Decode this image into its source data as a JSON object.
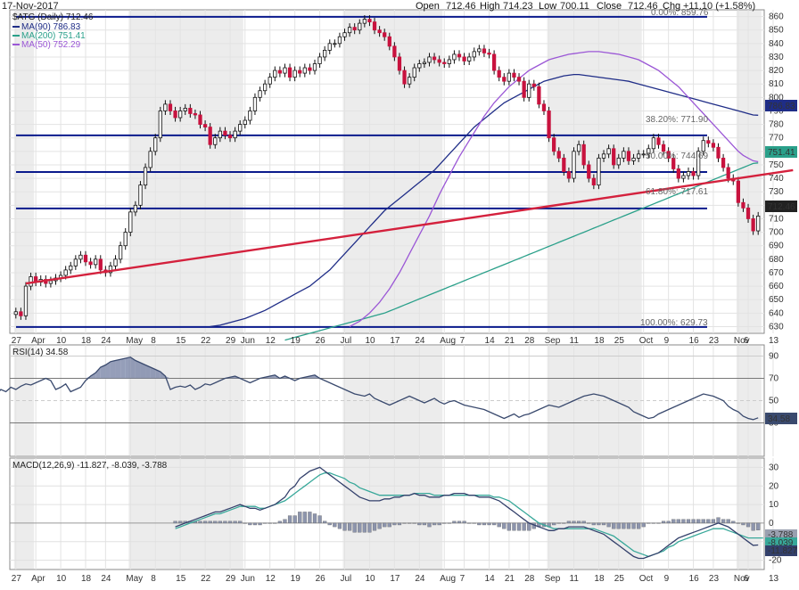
{
  "header": {
    "date": "17-Nov-2017",
    "open_label": "Open",
    "open": "712.46",
    "high_label": "High",
    "high": "714.23",
    "low_label": "Low",
    "low": "700.11",
    "close_label": "Close",
    "close": "712.46",
    "chg_label": "Chg",
    "chg": "+11.10 (+1.58%)"
  },
  "legend": {
    "symbol": "$ATG (Daily) 712.46",
    "ma90": "MA(90) 786.83",
    "ma200": "MA(200) 751.41",
    "ma50": "MA(50) 752.29"
  },
  "fib_labels": {
    "f0": "0.00%: 859.76",
    "f382": "38.20%: 771.90",
    "f50": "50.00%: 744.69",
    "f618": "61.80%: 717.61",
    "f100": "100.00%: 629.73"
  },
  "price_badges": {
    "ma90": "786.83",
    "ma200": "751.41",
    "last": "712.46"
  },
  "rsi": {
    "label": "RSI(14) 34.58",
    "badge": "34.58"
  },
  "macd": {
    "label": "MACD(12,26,9) -11.827, -8.039, -3.788",
    "b_hist": "-3.788",
    "b_signal": "-8.039",
    "b_macd": "-11.827"
  },
  "colors": {
    "ma90": "#1f2d87",
    "ma200": "#2aa08a",
    "ma50": "#9b57d6",
    "trend": "#d4213d",
    "fib": "#0a1a8c",
    "up": "#ffffff",
    "down": "#c8123e",
    "rsi": "#3a4a6e",
    "macd": "#33406b",
    "signal": "#38a89a"
  },
  "chart_data": {
    "type": "candlestick",
    "title": "$ATG (Daily)",
    "ylim": [
      625,
      865
    ],
    "y_ticks": [
      630,
      640,
      650,
      660,
      670,
      680,
      690,
      700,
      710,
      720,
      730,
      740,
      750,
      760,
      770,
      780,
      790,
      800,
      810,
      820,
      830,
      840,
      850,
      860
    ],
    "x_ticks": [
      {
        "i": 0,
        "label": "27"
      },
      {
        "i": 4,
        "label": "Apr"
      },
      {
        "i": 9,
        "label": "10"
      },
      {
        "i": 14,
        "label": "18"
      },
      {
        "i": 18,
        "label": "24"
      },
      {
        "i": 23,
        "label": "May"
      },
      {
        "i": 28,
        "label": "8"
      },
      {
        "i": 33,
        "label": "15"
      },
      {
        "i": 38,
        "label": "22"
      },
      {
        "i": 43,
        "label": "29"
      },
      {
        "i": 46,
        "label": "Jun"
      },
      {
        "i": 51,
        "label": "12"
      },
      {
        "i": 56,
        "label": "19"
      },
      {
        "i": 61,
        "label": "26"
      },
      {
        "i": 66,
        "label": "Jul"
      },
      {
        "i": 71,
        "label": "10"
      },
      {
        "i": 76,
        "label": "17"
      },
      {
        "i": 81,
        "label": "24"
      },
      {
        "i": 86,
        "label": "Aug"
      },
      {
        "i": 90,
        "label": "7"
      },
      {
        "i": 95,
        "label": "14"
      },
      {
        "i": 99,
        "label": "21"
      },
      {
        "i": 103,
        "label": "28"
      },
      {
        "i": 107,
        "label": "Sep"
      },
      {
        "i": 112,
        "label": "11"
      },
      {
        "i": 117,
        "label": "18"
      },
      {
        "i": 121,
        "label": "25"
      },
      {
        "i": 126,
        "label": "Oct"
      },
      {
        "i": 131,
        "label": "9"
      },
      {
        "i": 136,
        "label": "16"
      },
      {
        "i": 140,
        "label": "23"
      },
      {
        "i": 145,
        "label": "Nov"
      },
      {
        "i": 147,
        "label": "6"
      },
      {
        "i": 152,
        "label": "13"
      }
    ],
    "fib_levels": [
      859.76,
      771.9,
      744.69,
      717.61,
      629.73
    ],
    "trendline": [
      {
        "i": 2,
        "v": 662
      },
      {
        "i": 156,
        "v": 746
      }
    ],
    "closes": [
      641,
      638,
      660,
      667,
      663,
      665,
      662,
      664,
      666,
      668,
      672,
      675,
      680,
      683,
      678,
      676,
      680,
      672,
      670,
      675,
      680,
      690,
      700,
      715,
      720,
      735,
      748,
      760,
      770,
      790,
      795,
      790,
      785,
      790,
      792,
      788,
      787,
      780,
      778,
      765,
      770,
      775,
      772,
      770,
      775,
      780,
      783,
      790,
      800,
      805,
      810,
      815,
      820,
      818,
      822,
      815,
      820,
      818,
      822,
      820,
      825,
      830,
      835,
      840,
      840,
      845,
      848,
      852,
      850,
      855,
      858,
      856,
      850,
      848,
      845,
      838,
      830,
      820,
      810,
      815,
      822,
      825,
      826,
      830,
      828,
      826,
      825,
      828,
      832,
      830,
      827,
      830,
      834,
      836,
      833,
      832,
      820,
      815,
      812,
      818,
      815,
      812,
      800,
      810,
      808,
      795,
      790,
      770,
      760,
      755,
      745,
      740,
      760,
      765,
      750,
      740,
      735,
      755,
      758,
      762,
      750,
      755,
      760,
      753,
      755,
      758,
      758,
      762,
      770,
      765,
      760,
      755,
      747,
      740,
      742,
      745,
      742,
      760,
      768,
      766,
      763,
      755,
      748,
      740,
      738,
      722,
      718,
      710,
      701,
      712
    ],
    "ma90": [
      630,
      630.5,
      631,
      632,
      633,
      634,
      635,
      636,
      637.5,
      639,
      640.5,
      642,
      644,
      646,
      648,
      650,
      652,
      654,
      656,
      658,
      660,
      663,
      666,
      669,
      672,
      676,
      680,
      684,
      688,
      692,
      696,
      700,
      704,
      708,
      712,
      716,
      719,
      722,
      725,
      728,
      731,
      734,
      737,
      740,
      743,
      746,
      750,
      754,
      758,
      762,
      766,
      770,
      774,
      778,
      781,
      784,
      787,
      790,
      793,
      796,
      798,
      800,
      802,
      804,
      806,
      808,
      810,
      812,
      813,
      814,
      815,
      816,
      816.5,
      817,
      817,
      816.5,
      816,
      815.5,
      815,
      814.5,
      814,
      813.5,
      813,
      812.5,
      812,
      811,
      810,
      809,
      808,
      807,
      806,
      805,
      804,
      803,
      802,
      801,
      800,
      799,
      798,
      797,
      796,
      795,
      794,
      793,
      792,
      791,
      790,
      789,
      788,
      787,
      786.8
    ],
    "ma200": [
      620,
      621,
      622,
      623,
      624,
      625,
      626,
      627,
      628,
      629,
      630,
      631,
      632,
      633,
      634,
      635,
      636,
      637,
      638,
      639,
      640,
      641.5,
      643,
      644.5,
      646,
      647.5,
      649,
      650.5,
      652,
      653.5,
      655,
      656.5,
      658,
      659.5,
      661,
      662.5,
      664,
      665.5,
      667,
      668.5,
      670,
      671.5,
      673,
      674.5,
      676,
      677.5,
      679,
      680.5,
      682,
      683.5,
      685,
      686.5,
      688,
      689.5,
      691,
      692.5,
      694,
      695.5,
      697,
      698.5,
      700,
      701.5,
      703,
      704.5,
      706,
      707.5,
      709,
      710.5,
      712,
      713.5,
      715,
      716.5,
      718,
      719.5,
      721,
      722.5,
      724,
      725.5,
      727,
      728.5,
      730,
      731.5,
      733,
      734.5,
      736,
      737.5,
      739,
      740.5,
      742,
      743.5,
      745,
      746.5,
      748,
      749.5,
      751,
      751.4
    ],
    "ma50": [
      630,
      632,
      634,
      637,
      640,
      644,
      648,
      653,
      658,
      664,
      670,
      677,
      684,
      691,
      698,
      705,
      712,
      720,
      728,
      735,
      742,
      749,
      756,
      762,
      768,
      774,
      780,
      786,
      791,
      796,
      800,
      804,
      808,
      811,
      814,
      817,
      820,
      822,
      824,
      826,
      828,
      829,
      830,
      831,
      832,
      832.5,
      833,
      833.5,
      834,
      834,
      834,
      833.5,
      833,
      832.5,
      832,
      831,
      830,
      829,
      828,
      826,
      824,
      822,
      820,
      817,
      814,
      811,
      808,
      804,
      800,
      796,
      792,
      788,
      784,
      780,
      776,
      772,
      768,
      764,
      760,
      757,
      755,
      753,
      752.3
    ],
    "rsi": {
      "ylim": [
        0,
        100
      ],
      "ticks": [
        30,
        50,
        70,
        90
      ],
      "values": [
        50,
        48,
        55,
        60,
        58,
        62,
        60,
        63,
        65,
        64,
        66,
        68,
        70,
        68,
        60,
        62,
        65,
        58,
        60,
        62,
        68,
        72,
        75,
        80,
        82,
        85,
        86,
        87,
        88,
        89,
        86,
        84,
        82,
        80,
        78,
        76,
        72,
        60,
        62,
        63,
        62,
        64,
        60,
        62,
        65,
        64,
        66,
        68,
        70,
        71,
        72,
        70,
        68,
        66,
        68,
        70,
        71,
        72,
        73,
        70,
        72,
        70,
        68,
        70,
        71,
        72,
        73,
        70,
        68,
        66,
        64,
        62,
        60,
        58,
        56,
        55,
        54,
        56,
        52,
        50,
        48,
        46,
        48,
        50,
        52,
        54,
        52,
        50,
        48,
        50,
        52,
        49,
        47,
        49,
        50,
        48,
        46,
        45,
        44,
        43,
        42,
        40,
        38,
        36,
        34,
        36,
        38,
        35,
        37,
        38,
        40,
        42,
        44,
        46,
        45,
        44,
        46,
        48,
        50,
        52,
        54,
        55,
        56,
        55,
        54,
        52,
        50,
        48,
        46,
        44,
        40,
        38,
        36,
        34,
        35,
        38,
        40,
        42,
        44,
        46,
        48,
        50,
        52,
        54,
        56,
        55,
        54,
        52,
        50,
        45,
        42,
        40,
        36,
        34,
        33,
        34.6
      ]
    },
    "macd": {
      "ylim": [
        -25,
        35
      ],
      "ticks": [
        -20,
        -10,
        0,
        10,
        20,
        30
      ],
      "macd": [
        -2,
        -1,
        0,
        1,
        2,
        3,
        4,
        5,
        6,
        6,
        7,
        8,
        9,
        10,
        9,
        8,
        8,
        7,
        8,
        9,
        10,
        12,
        14,
        18,
        20,
        24,
        26,
        28,
        29,
        30,
        28,
        26,
        24,
        22,
        20,
        18,
        16,
        14,
        13,
        12,
        12,
        12,
        13,
        13,
        14,
        14,
        15,
        15,
        16,
        15,
        15,
        14,
        14,
        14,
        15,
        15,
        16,
        16,
        16,
        15,
        15,
        14,
        14,
        14,
        13,
        12,
        10,
        8,
        6,
        4,
        2,
        0,
        -1,
        -2,
        -3,
        -4,
        -4,
        -3,
        -3,
        -2,
        -2,
        -2,
        -2,
        -3,
        -4,
        -5,
        -6,
        -8,
        -10,
        -12,
        -14,
        -16,
        -18,
        -19,
        -19,
        -18,
        -17,
        -16,
        -14,
        -12,
        -10,
        -8,
        -7,
        -6,
        -5,
        -4,
        -3,
        -2,
        -1,
        0,
        -1,
        -2,
        -4,
        -6,
        -8,
        -10,
        -12,
        -11.8
      ],
      "signal": [
        -3,
        -2,
        -1,
        0,
        1,
        2,
        3,
        4,
        5,
        5,
        6,
        7,
        8,
        9,
        9,
        9,
        9,
        8,
        8,
        9,
        10,
        11,
        12,
        14,
        16,
        18,
        20,
        22,
        24,
        26,
        27,
        27,
        26,
        25,
        24,
        22,
        21,
        19,
        18,
        17,
        16,
        15,
        15,
        15,
        15,
        15,
        15,
        15,
        16,
        16,
        16,
        16,
        15,
        15,
        15,
        15,
        15,
        15,
        15,
        15,
        15,
        15,
        15,
        15,
        14,
        14,
        13,
        12,
        10,
        8,
        6,
        4,
        2,
        0,
        -1,
        -2,
        -3,
        -3,
        -3,
        -3,
        -3,
        -3,
        -3,
        -3,
        -3,
        -4,
        -5,
        -6,
        -7,
        -9,
        -11,
        -13,
        -15,
        -16,
        -17,
        -18,
        -17,
        -16,
        -15,
        -13,
        -12,
        -10,
        -9,
        -8,
        -7,
        -6,
        -5,
        -4,
        -3,
        -3,
        -3,
        -4,
        -5,
        -6,
        -7,
        -8,
        -8,
        -8,
        -8.0
      ]
    }
  }
}
